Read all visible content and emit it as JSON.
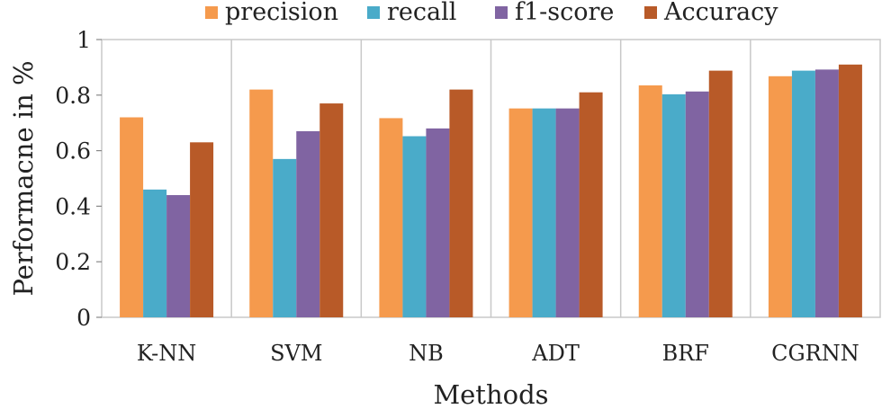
{
  "chart_data": {
    "type": "bar",
    "title": "",
    "xlabel": "Methods",
    "ylabel": "Performacne in %",
    "ylim": [
      0,
      1
    ],
    "yticks": [
      0,
      0.2,
      0.4,
      0.6,
      0.8,
      1
    ],
    "ytick_labels": [
      "0",
      "0.2",
      "0.4",
      "0.6",
      "0.8",
      "1"
    ],
    "grid": "vertical category separators",
    "legend_position": "top",
    "categories": [
      "K-NN",
      "SVM",
      "NB",
      "ADT",
      "BRF",
      "CGRNN"
    ],
    "series": [
      {
        "name": "precision",
        "color": "#f59a4d",
        "values": [
          0.72,
          0.82,
          0.717,
          0.752,
          0.835,
          0.868
        ]
      },
      {
        "name": "recall",
        "color": "#4aabc9",
        "values": [
          0.46,
          0.57,
          0.652,
          0.752,
          0.803,
          0.888
        ]
      },
      {
        "name": "f1-score",
        "color": "#8064a2",
        "values": [
          0.44,
          0.67,
          0.68,
          0.752,
          0.813,
          0.892
        ]
      },
      {
        "name": "Accuracy",
        "color": "#b85a28",
        "values": [
          0.63,
          0.77,
          0.82,
          0.81,
          0.888,
          0.91
        ]
      }
    ]
  }
}
